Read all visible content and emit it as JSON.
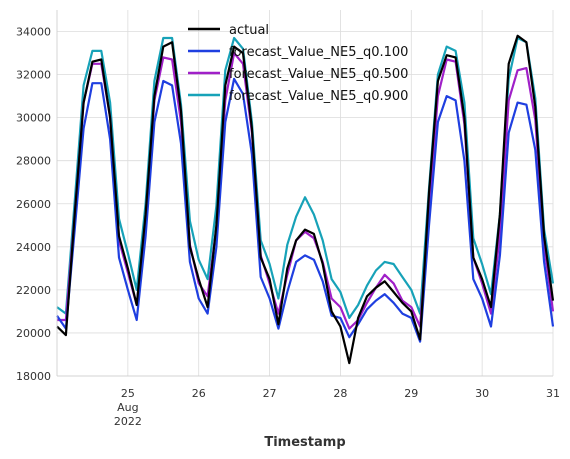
{
  "chart_data": {
    "type": "line",
    "title": "",
    "xlabel": "Timestamp",
    "ylabel": "",
    "xlim": [
      "2022-08-24 00:00",
      "2022-08-31 00:00"
    ],
    "ylim": [
      18000,
      35000
    ],
    "grid": true,
    "legend_position": "top-center",
    "y_ticks": [
      {
        "value": 18000,
        "label": "18000"
      },
      {
        "value": 20000,
        "label": "20000"
      },
      {
        "value": 22000,
        "label": "22000"
      },
      {
        "value": 24000,
        "label": "24000"
      },
      {
        "value": 26000,
        "label": "26000"
      },
      {
        "value": 28000,
        "label": "28000"
      },
      {
        "value": 30000,
        "label": "30000"
      },
      {
        "value": 32000,
        "label": "32000"
      },
      {
        "value": 34000,
        "label": "34000"
      }
    ],
    "x_ticks": [
      {
        "value": "2022-08-25",
        "lines": [
          "25",
          "Aug",
          "2022"
        ]
      },
      {
        "value": "2022-08-26",
        "lines": [
          "26"
        ]
      },
      {
        "value": "2022-08-27",
        "lines": [
          "27"
        ]
      },
      {
        "value": "2022-08-28",
        "lines": [
          "28"
        ]
      },
      {
        "value": "2022-08-29",
        "lines": [
          "29"
        ]
      },
      {
        "value": "2022-08-30",
        "lines": [
          "30"
        ]
      },
      {
        "value": "2022-08-31",
        "lines": [
          "31"
        ]
      }
    ],
    "x": [
      "2022-08-24 00:00",
      "2022-08-24 03:00",
      "2022-08-24 06:00",
      "2022-08-24 09:00",
      "2022-08-24 12:00",
      "2022-08-24 15:00",
      "2022-08-24 18:00",
      "2022-08-24 21:00",
      "2022-08-25 00:00",
      "2022-08-25 03:00",
      "2022-08-25 06:00",
      "2022-08-25 09:00",
      "2022-08-25 12:00",
      "2022-08-25 15:00",
      "2022-08-25 18:00",
      "2022-08-25 21:00",
      "2022-08-26 00:00",
      "2022-08-26 03:00",
      "2022-08-26 06:00",
      "2022-08-26 09:00",
      "2022-08-26 12:00",
      "2022-08-26 15:00",
      "2022-08-26 18:00",
      "2022-08-26 21:00",
      "2022-08-27 00:00",
      "2022-08-27 03:00",
      "2022-08-27 06:00",
      "2022-08-27 09:00",
      "2022-08-27 12:00",
      "2022-08-27 15:00",
      "2022-08-27 18:00",
      "2022-08-27 21:00",
      "2022-08-28 00:00",
      "2022-08-28 03:00",
      "2022-08-28 06:00",
      "2022-08-28 09:00",
      "2022-08-28 12:00",
      "2022-08-28 15:00",
      "2022-08-28 18:00",
      "2022-08-28 21:00",
      "2022-08-29 00:00",
      "2022-08-29 03:00",
      "2022-08-29 06:00",
      "2022-08-29 09:00",
      "2022-08-29 12:00",
      "2022-08-29 15:00",
      "2022-08-29 18:00",
      "2022-08-29 21:00",
      "2022-08-30 00:00",
      "2022-08-30 03:00",
      "2022-08-30 06:00",
      "2022-08-30 09:00",
      "2022-08-30 12:00",
      "2022-08-30 15:00",
      "2022-08-30 18:00",
      "2022-08-30 21:00",
      "2022-08-31 00:00"
    ],
    "series": [
      {
        "name": "actual",
        "color": "#000000",
        "values": [
          20300,
          19900,
          25500,
          30700,
          32600,
          32700,
          30000,
          24500,
          23000,
          21300,
          25500,
          31000,
          33300,
          33500,
          30300,
          24000,
          22500,
          21200,
          25000,
          31500,
          33300,
          33000,
          29500,
          23500,
          22500,
          20400,
          23000,
          24300,
          24800,
          24600,
          23200,
          21000,
          20300,
          18600,
          20700,
          21700,
          22100,
          22400,
          21900,
          21400,
          21000,
          19700,
          26500,
          31700,
          32900,
          32800,
          30000,
          23500,
          22500,
          21200,
          25500,
          32500,
          33800,
          33500,
          30500,
          24500,
          21500
        ]
      },
      {
        "name": "forecast_Value_NE5_q0.100",
        "color": "#1f3fe0",
        "values": [
          20800,
          20200,
          24800,
          29500,
          31600,
          31600,
          29000,
          23500,
          22000,
          20600,
          24500,
          29800,
          31700,
          31500,
          28800,
          23300,
          21600,
          20900,
          24000,
          29800,
          31800,
          31100,
          28300,
          22600,
          21600,
          20200,
          21900,
          23300,
          23600,
          23400,
          22400,
          20800,
          20700,
          19800,
          20400,
          21100,
          21500,
          21800,
          21400,
          20900,
          20700,
          19600,
          25000,
          29800,
          31000,
          30800,
          28000,
          22500,
          21600,
          20300,
          23600,
          29300,
          30700,
          30600,
          28500,
          23300,
          20300
        ]
      },
      {
        "name": "forecast_Value_NE5_q0.500",
        "color": "#a020c8",
        "values": [
          20600,
          20600,
          25500,
          30700,
          32500,
          32500,
          30000,
          24300,
          22800,
          21300,
          25300,
          30800,
          32800,
          32700,
          29800,
          24100,
          22300,
          21700,
          24900,
          30800,
          33000,
          32500,
          29300,
          23600,
          22300,
          20900,
          22700,
          24300,
          24700,
          24400,
          23300,
          21600,
          21200,
          20200,
          20600,
          21400,
          22100,
          22700,
          22300,
          21500,
          21200,
          20300,
          25800,
          31000,
          32700,
          32600,
          29700,
          23500,
          22300,
          20900,
          24600,
          30800,
          32200,
          32300,
          29900,
          24100,
          21000
        ]
      },
      {
        "name": "forecast_Value_NE5_q0.900",
        "color": "#17a2b8",
        "values": [
          21200,
          20900,
          26100,
          31500,
          33100,
          33100,
          30700,
          25300,
          23700,
          22000,
          26000,
          31700,
          33700,
          33700,
          30600,
          25200,
          23400,
          22500,
          25900,
          32200,
          33700,
          33200,
          29800,
          24300,
          23200,
          21600,
          24100,
          25400,
          26300,
          25500,
          24300,
          22500,
          21900,
          20700,
          21300,
          22200,
          22900,
          23300,
          23200,
          22600,
          22000,
          20900,
          26700,
          32000,
          33300,
          33100,
          30700,
          24400,
          23200,
          21800,
          25500,
          31800,
          33700,
          33500,
          30900,
          24800,
          22300
        ]
      }
    ]
  }
}
